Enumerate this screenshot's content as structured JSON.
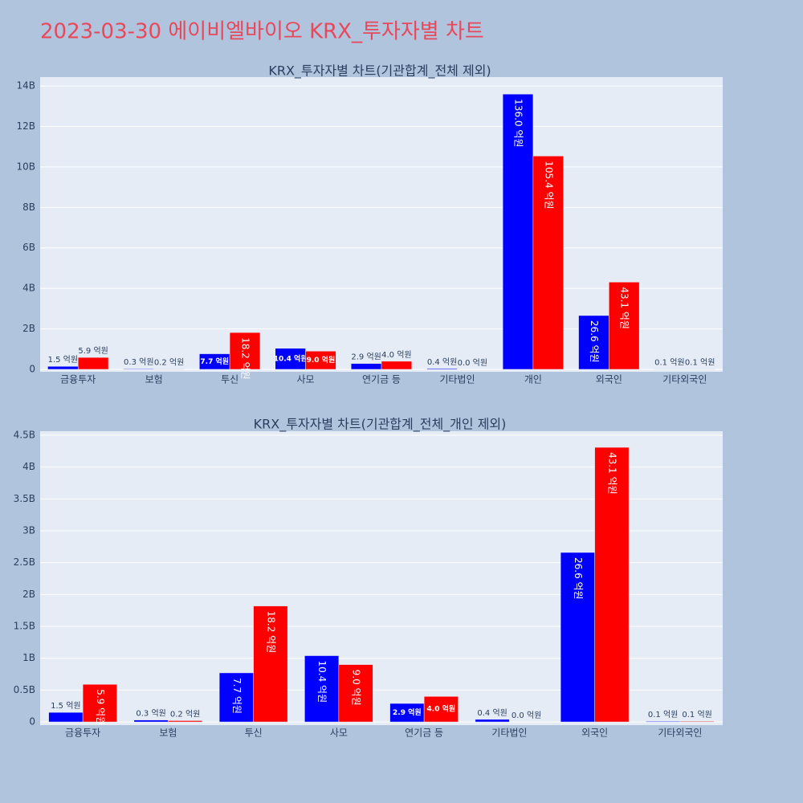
{
  "title": "2023-03-30 에이비엘바이오 KRX_투자자별 차트",
  "chart_data": [
    {
      "type": "bar",
      "title": "KRX_투자자별 차트(기관합계_전체 제외)",
      "categories": [
        "금융투자",
        "보험",
        "투신",
        "사모",
        "연기금 등",
        "기타법인",
        "개인",
        "외국인",
        "기타외국인"
      ],
      "series": [
        {
          "color": "#0000ff",
          "values": [
            150000000,
            30000000,
            770000000,
            1040000000,
            290000000,
            40000000,
            13600000000,
            2660000000,
            10000000
          ],
          "value_labels": [
            "1.5 억원",
            "0.3 억원",
            "7.7 억원",
            "10.4 억원",
            "2.9 억원",
            "0.4 억원",
            "136.0 억원",
            "26.6 억원",
            "0.1 억원"
          ]
        },
        {
          "color": "#ff0000",
          "values": [
            590000000,
            20000000,
            1820000000,
            900000000,
            400000000,
            0,
            10540000000,
            4310000000,
            10000000
          ],
          "value_labels": [
            "5.9 억원",
            "0.2 억원",
            "18.2 억원",
            "9.0 억원",
            "4.0 억원",
            "0.0 억원",
            "105.4 억원",
            "43.1 억원",
            "0.1 억원"
          ]
        }
      ],
      "ylim": [
        -120000000,
        14440000000
      ],
      "yticks": [
        0,
        {
          "value": 2000000000,
          "label": "2B"
        },
        {
          "value": 4000000000,
          "label": "4B"
        },
        {
          "value": 6000000000,
          "label": "6B"
        },
        {
          "value": 8000000000,
          "label": "8B"
        },
        {
          "value": 10000000000,
          "label": "10B"
        },
        {
          "value": 12000000000,
          "label": "12B"
        },
        {
          "value": 14000000000,
          "label": "14B"
        }
      ],
      "grid": true
    },
    {
      "type": "bar",
      "title": "KRX_투자자별 차트(기관합계_전체_개인 제외)",
      "categories": [
        "금융투자",
        "보험",
        "투신",
        "사모",
        "연기금 등",
        "기타법인",
        "외국인",
        "기타외국인"
      ],
      "series": [
        {
          "color": "#0000ff",
          "values": [
            150000000,
            30000000,
            770000000,
            1040000000,
            290000000,
            40000000,
            2660000000,
            10000000
          ],
          "value_labels": [
            "1.5 억원",
            "0.3 억원",
            "7.7 억원",
            "10.4 억원",
            "2.9 억원",
            "0.4 억원",
            "26.6 억원",
            "0.1 억원"
          ]
        },
        {
          "color": "#ff0000",
          "values": [
            590000000,
            20000000,
            1820000000,
            900000000,
            400000000,
            0,
            4310000000,
            10000000
          ],
          "value_labels": [
            "5.9 억원",
            "0.2 억원",
            "18.2 억원",
            "9.0 억원",
            "4.0 억원",
            "0.0 억원",
            "43.1 억원",
            "0.1 억원"
          ]
        }
      ],
      "ylim": [
        -50000000,
        4563000000
      ],
      "yticks": [
        0,
        {
          "value": 500000000,
          "label": "0.5B"
        },
        {
          "value": 1000000000,
          "label": "1B"
        },
        {
          "value": 1500000000,
          "label": "1.5B"
        },
        {
          "value": 2000000000,
          "label": "2B"
        },
        {
          "value": 2500000000,
          "label": "2.5B"
        },
        {
          "value": 3000000000,
          "label": "3B"
        },
        {
          "value": 3500000000,
          "label": "3.5B"
        },
        {
          "value": 4000000000,
          "label": "4B"
        },
        {
          "value": 4500000000,
          "label": "4.5B"
        }
      ],
      "grid": true
    }
  ]
}
